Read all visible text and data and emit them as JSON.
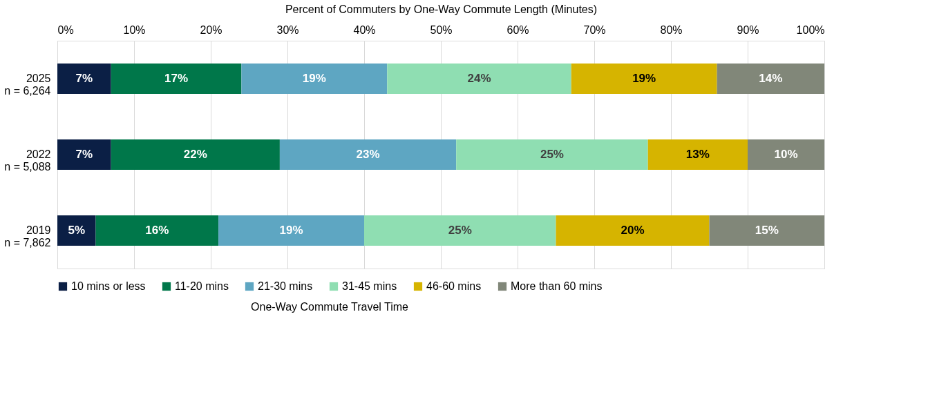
{
  "chart_data": {
    "type": "bar",
    "orientation": "horizontal",
    "stacked": true,
    "title": "Percent of Commuters by One-Way Commute Length (Minutes)",
    "legend_title": "One-Way Commute Travel Time",
    "categories": [
      "2025\nn = 6,264",
      "2022\nn = 5,088",
      "2019\nn = 7,862"
    ],
    "series": [
      {
        "name": "10 mins or less",
        "color": "#0b1f45",
        "values": [
          7,
          7,
          5
        ],
        "value_labels": [
          "7%",
          "7%",
          "5%"
        ]
      },
      {
        "name": "11-20 mins",
        "color": "#00774a",
        "values": [
          17,
          22,
          16
        ],
        "value_labels": [
          "17%",
          "22%",
          "16%"
        ]
      },
      {
        "name": "21-30 mins",
        "color": "#5ea6c2",
        "values": [
          19,
          23,
          19
        ],
        "value_labels": [
          "19%",
          "23%",
          "19%"
        ]
      },
      {
        "name": "31-45 mins",
        "color": "#8fdeb2",
        "values": [
          24,
          25,
          25
        ],
        "value_labels": [
          "24%",
          "25%",
          "25%"
        ]
      },
      {
        "name": "46-60 mins",
        "color": "#d6b400",
        "values": [
          19,
          13,
          20
        ],
        "value_labels": [
          "19%",
          "13%",
          "20%"
        ]
      },
      {
        "name": "More than 60 mins",
        "color": "#818779",
        "values": [
          14,
          10,
          15
        ],
        "value_labels": [
          "14%",
          "10%",
          "15%"
        ]
      }
    ],
    "xlim": [
      0,
      100
    ],
    "xticks": [
      {
        "value": 0,
        "label": "0%"
      },
      {
        "value": 10,
        "label": "10%"
      },
      {
        "value": 20,
        "label": "20%"
      },
      {
        "value": 30,
        "label": "30%"
      },
      {
        "value": 40,
        "label": "40%"
      },
      {
        "value": 50,
        "label": "50%"
      },
      {
        "value": 60,
        "label": "60%"
      },
      {
        "value": 70,
        "label": "70%"
      },
      {
        "value": 80,
        "label": "80%"
      },
      {
        "value": 90,
        "label": "90%"
      },
      {
        "value": 100,
        "label": "100%"
      }
    ],
    "grid": "x",
    "legend": "bottom"
  }
}
